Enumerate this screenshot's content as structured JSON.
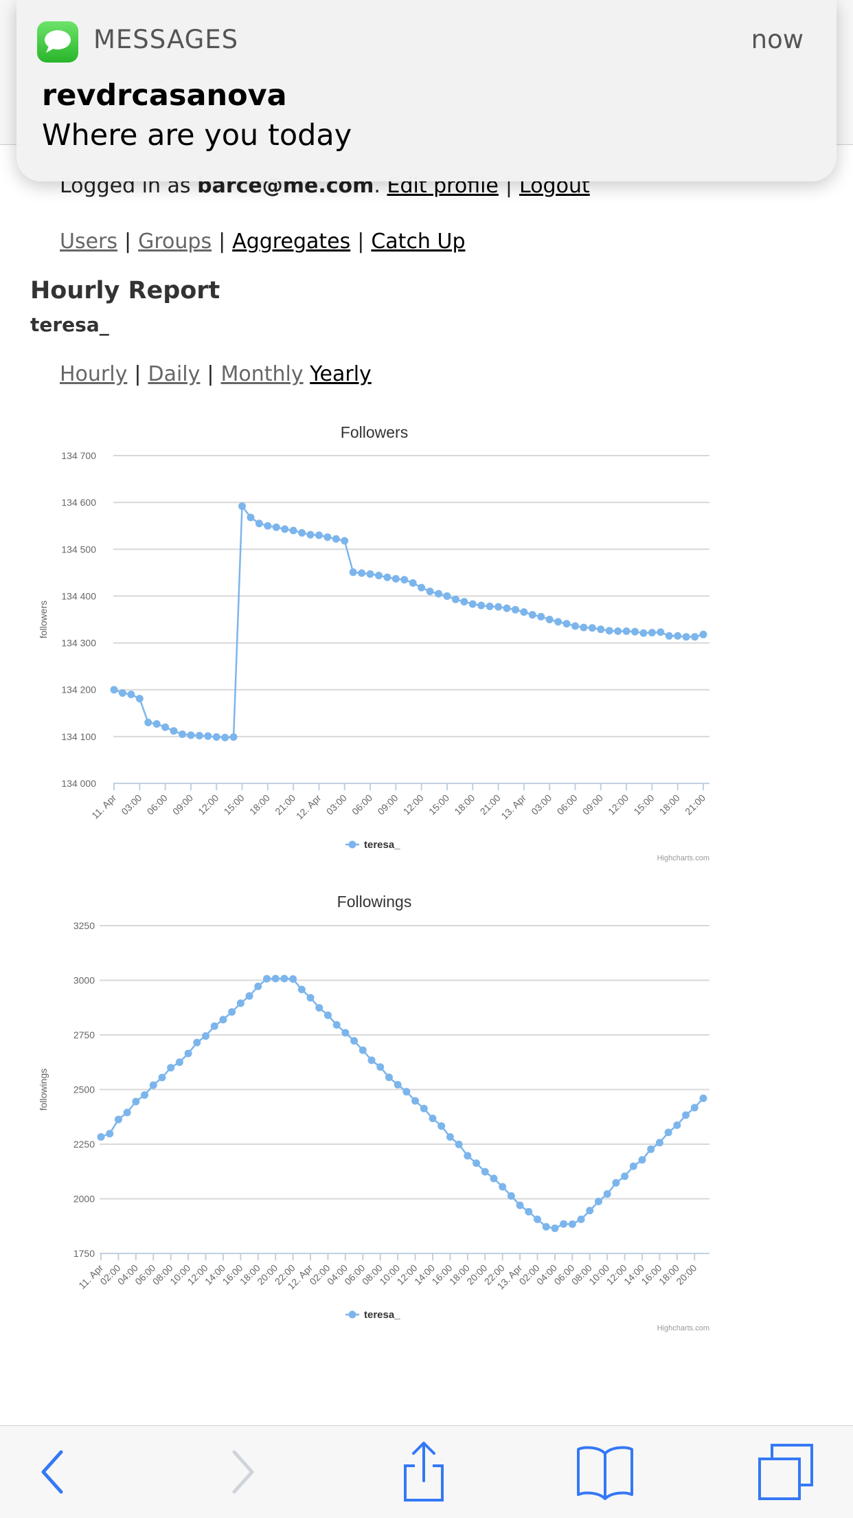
{
  "notification": {
    "app_name": "MESSAGES",
    "time": "now",
    "sender": "revdrcasanova",
    "message": "Where are you today"
  },
  "account": {
    "prefix": "Logged in as ",
    "email": "barce@me.com",
    "after_email": ". ",
    "edit_profile": "Edit profile",
    "separator": "|",
    "logout": "Logout"
  },
  "nav": {
    "users": "Users",
    "groups": "Groups",
    "aggregates": "Aggregates",
    "catch_up": "Catch Up",
    "separator": "|"
  },
  "page": {
    "title": "Hourly Report",
    "username": "teresa_"
  },
  "report_tabs": {
    "hourly": "Hourly",
    "daily": "Daily",
    "monthly": "Monthly",
    "yearly": "Yearly",
    "separator": "|"
  },
  "chart_data": [
    {
      "type": "line",
      "title": "Followers",
      "ylabel": "followers",
      "ylim": [
        134000,
        134700
      ],
      "y_ticks": [
        134000,
        134100,
        134200,
        134300,
        134400,
        134500,
        134600,
        134700
      ],
      "y_tick_labels": [
        "134 000",
        "134 100",
        "134 200",
        "134 300",
        "134 400",
        "134 500",
        "134 600",
        "134 700"
      ],
      "x_ticks": [
        "11. Apr",
        "03:00",
        "06:00",
        "09:00",
        "12:00",
        "15:00",
        "18:00",
        "21:00",
        "12. Apr",
        "03:00",
        "06:00",
        "09:00",
        "12:00",
        "15:00",
        "18:00",
        "21:00",
        "13. Apr",
        "03:00",
        "06:00",
        "09:00",
        "12:00",
        "15:00",
        "18:00",
        "21:00"
      ],
      "x_start": "11. Apr 00:00",
      "x_interval": "1 hour",
      "color": "#7cb5ec",
      "series": [
        {
          "name": "teresa_",
          "values": [
            134200,
            134193,
            134190,
            134181,
            134130,
            134127,
            134120,
            134112,
            134105,
            134103,
            134102,
            134101,
            134099,
            134098,
            134099,
            134592,
            134568,
            134555,
            134550,
            134547,
            134543,
            134540,
            134535,
            134531,
            134530,
            134526,
            134522,
            134518,
            134451,
            134449,
            134447,
            134444,
            134440,
            134437,
            134435,
            134428,
            134418,
            134410,
            134405,
            134400,
            134393,
            134388,
            134383,
            134380,
            134378,
            134377,
            134374,
            134371,
            134366,
            134360,
            134356,
            134350,
            134345,
            134341,
            134336,
            134333,
            134332,
            134329,
            134326,
            134325,
            134325,
            134324,
            134321,
            134322,
            134323,
            134315,
            134315,
            134313,
            134313,
            134318
          ]
        }
      ],
      "legend": "bottom-center",
      "credits": "Highcharts.com"
    },
    {
      "type": "line",
      "title": "Followings",
      "ylabel": "followings",
      "ylim": [
        1750,
        3250
      ],
      "y_ticks": [
        1750,
        2000,
        2250,
        2500,
        2750,
        3000,
        3250
      ],
      "y_tick_labels": [
        "1750",
        "2000",
        "2250",
        "2500",
        "2750",
        "3000",
        "3250"
      ],
      "x_ticks": [
        "11. Apr",
        "02:00",
        "04:00",
        "06:00",
        "08:00",
        "10:00",
        "12:00",
        "14:00",
        "16:00",
        "18:00",
        "20:00",
        "22:00",
        "12. Apr",
        "02:00",
        "04:00",
        "06:00",
        "08:00",
        "10:00",
        "12:00",
        "14:00",
        "16:00",
        "18:00",
        "20:00",
        "22:00",
        "13. Apr",
        "02:00",
        "04:00",
        "06:00",
        "08:00",
        "10:00",
        "12:00",
        "14:00",
        "16:00",
        "18:00",
        "20:00"
      ],
      "x_start": "11. Apr 00:00",
      "x_interval": "1 hour",
      "color": "#7cb5ec",
      "series": [
        {
          "name": "teresa_",
          "values": [
            2283,
            2298,
            2363,
            2395,
            2445,
            2475,
            2520,
            2555,
            2600,
            2625,
            2665,
            2715,
            2745,
            2790,
            2820,
            2855,
            2895,
            2928,
            2972,
            3007,
            3008,
            3008,
            3006,
            2958,
            2920,
            2874,
            2840,
            2796,
            2760,
            2723,
            2680,
            2634,
            2603,
            2556,
            2522,
            2490,
            2448,
            2413,
            2368,
            2333,
            2283,
            2249,
            2197,
            2163,
            2124,
            2093,
            2055,
            2013,
            1970,
            1941,
            1906,
            1872,
            1865,
            1885,
            1884,
            1906,
            1946,
            1988,
            2022,
            2073,
            2103,
            2149,
            2178,
            2227,
            2257,
            2304,
            2337,
            2383,
            2417,
            2460
          ]
        }
      ],
      "legend": "bottom-center",
      "credits": "Highcharts.com"
    }
  ],
  "toolbar": {
    "back": "back",
    "forward": "forward",
    "share": "share",
    "bookmarks": "bookmarks",
    "tabs": "tabs"
  },
  "colors": {
    "series": "#7cb5ec",
    "ios_blue": "#3478f6",
    "messages_green": "#34c759"
  }
}
